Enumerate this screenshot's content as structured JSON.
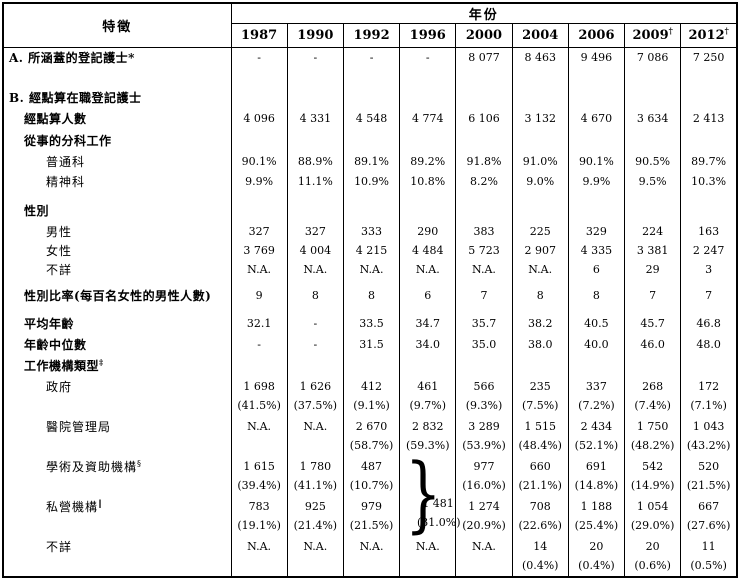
{
  "colors": {
    "border": "#000000",
    "text": "#000000",
    "background": "#ffffff"
  },
  "table": {
    "feature_header": "特徵",
    "year_header": "年份",
    "years": [
      {
        "text": "1987",
        "sup": ""
      },
      {
        "text": "1990",
        "sup": ""
      },
      {
        "text": "1992",
        "sup": ""
      },
      {
        "text": "1996",
        "sup": ""
      },
      {
        "text": "2000",
        "sup": ""
      },
      {
        "text": "2004",
        "sup": ""
      },
      {
        "text": "2006",
        "sup": ""
      },
      {
        "text": "2009",
        "sup": "†"
      },
      {
        "text": "2012",
        "sup": "†"
      }
    ],
    "rows": [
      {
        "kind": "single",
        "label": "A. 所涵蓋的登記護士*",
        "sup": "",
        "bold": true,
        "indent": 0,
        "h": 20,
        "values": [
          "-",
          "-",
          "-",
          "-",
          "8 077",
          "8 463",
          "9 496",
          "7 086",
          "7 250"
        ]
      },
      {
        "kind": "blank",
        "h": 20
      },
      {
        "kind": "single",
        "label": "B. 經點算在職登記護士",
        "sup": "",
        "bold": true,
        "indent": 0,
        "h": 20,
        "values": [
          "",
          "",
          "",
          "",
          "",
          "",
          "",
          "",
          ""
        ]
      },
      {
        "kind": "single",
        "label": "經點算人數",
        "sup": "",
        "bold": true,
        "indent": 1,
        "h": 22,
        "values": [
          "4 096",
          "4 331",
          "4 548",
          "4 774",
          "6 106",
          "3 132",
          "4 670",
          "3 634",
          "2 413"
        ]
      },
      {
        "kind": "single",
        "label": "從事的分科工作",
        "sup": "",
        "bold": true,
        "indent": 1,
        "h": 22,
        "values": [
          "",
          "",
          "",
          "",
          "",
          "",
          "",
          "",
          ""
        ]
      },
      {
        "kind": "single",
        "label": "普通科",
        "sup": "",
        "bold": false,
        "indent": 2,
        "h": 20,
        "values": [
          "90.1%",
          "88.9%",
          "89.1%",
          "89.2%",
          "91.8%",
          "91.0%",
          "90.1%",
          "90.5%",
          "89.7%"
        ]
      },
      {
        "kind": "single",
        "label": "精神科",
        "sup": "",
        "bold": false,
        "indent": 2,
        "h": 20,
        "values": [
          "9.9%",
          "11.1%",
          "10.9%",
          "10.8%",
          "8.2%",
          "9.0%",
          "9.9%",
          "9.5%",
          "10.3%"
        ]
      },
      {
        "kind": "blank",
        "h": 8
      },
      {
        "kind": "single",
        "label": "性別",
        "sup": "",
        "bold": true,
        "indent": 1,
        "h": 22,
        "values": [
          "",
          "",
          "",
          "",
          "",
          "",
          "",
          "",
          ""
        ]
      },
      {
        "kind": "single",
        "label": "男性",
        "sup": "",
        "bold": false,
        "indent": 2,
        "h": 19,
        "values": [
          "327",
          "327",
          "333",
          "290",
          "383",
          "225",
          "329",
          "224",
          "163"
        ]
      },
      {
        "kind": "single",
        "label": "女性",
        "sup": "",
        "bold": false,
        "indent": 2,
        "h": 19,
        "values": [
          "3 769",
          "4 004",
          "4 215",
          "4 484",
          "5 723",
          "2 907",
          "4 335",
          "3 381",
          "2 247"
        ]
      },
      {
        "kind": "single",
        "label": "不詳",
        "sup": "",
        "bold": false,
        "indent": 2,
        "h": 19,
        "values": [
          "N.A.",
          "N.A.",
          "N.A.",
          "N.A.",
          "N.A.",
          "N.A.",
          "6",
          "29",
          "3"
        ]
      },
      {
        "kind": "blank",
        "h": 6
      },
      {
        "kind": "single",
        "label": "性別比率(每百名女性的男性人數)",
        "sup": "",
        "bold": true,
        "indent": 1,
        "h": 22,
        "values": [
          "9",
          "8",
          "8",
          "6",
          "7",
          "8",
          "8",
          "7",
          "7"
        ]
      },
      {
        "kind": "blank",
        "h": 6
      },
      {
        "kind": "single",
        "label": "平均年齡",
        "sup": "",
        "bold": true,
        "indent": 1,
        "h": 21,
        "values": [
          "32.1",
          "-",
          "33.5",
          "34.7",
          "35.7",
          "38.2",
          "40.5",
          "45.7",
          "46.8"
        ]
      },
      {
        "kind": "single",
        "label": "年齡中位數",
        "sup": "",
        "bold": true,
        "indent": 1,
        "h": 21,
        "values": [
          "-",
          "-",
          "31.5",
          "34.0",
          "35.0",
          "38.0",
          "40.0",
          "46.0",
          "48.0"
        ]
      },
      {
        "kind": "single",
        "label": "工作機構類型",
        "sup": "‡",
        "bold": true,
        "indent": 1,
        "h": 22,
        "values": [
          "",
          "",
          "",
          "",
          "",
          "",
          "",
          "",
          ""
        ]
      },
      {
        "kind": "dual",
        "label": "政府",
        "sup": "",
        "bold": false,
        "indent": 2,
        "h": 40,
        "values": [
          [
            "1 698",
            "(41.5%)"
          ],
          [
            "1 626",
            "(37.5%)"
          ],
          [
            "412",
            "(9.1%)"
          ],
          [
            "461",
            "(9.7%)"
          ],
          [
            "566",
            "(9.3%)"
          ],
          [
            "235",
            "(7.5%)"
          ],
          [
            "337",
            "(7.2%)"
          ],
          [
            "268",
            "(7.4%)"
          ],
          [
            "172",
            "(7.1%)"
          ]
        ]
      },
      {
        "kind": "dual",
        "label": "醫院管理局",
        "sup": "",
        "bold": false,
        "indent": 2,
        "h": 40,
        "values": [
          [
            "N.A.",
            ""
          ],
          [
            "N.A.",
            ""
          ],
          [
            "2 670",
            "(58.7%)"
          ],
          [
            "2 832",
            "(59.3%)"
          ],
          [
            "3 289",
            "(53.9%)"
          ],
          [
            "1 515",
            "(48.4%)"
          ],
          [
            "2 434",
            "(52.1%)"
          ],
          [
            "1 750",
            "(48.2%)"
          ],
          [
            "1 043",
            "(43.2%)"
          ]
        ]
      },
      {
        "kind": "dual",
        "label": "學術及資助機構",
        "sup": "§",
        "bold": false,
        "indent": 2,
        "h": 40,
        "values": [
          [
            "1 615",
            "(39.4%)"
          ],
          [
            "1 780",
            "(41.1%)"
          ],
          [
            "487",
            "(10.7%)"
          ],
          [
            "",
            ""
          ],
          [
            "977",
            "(16.0%)"
          ],
          [
            "660",
            "(21.1%)"
          ],
          [
            "691",
            "(14.8%)"
          ],
          [
            "542",
            "(14.9%)"
          ],
          [
            "520",
            "(21.5%)"
          ]
        ]
      },
      {
        "kind": "dual",
        "label": "私營機構",
        "sup": "‖",
        "bold": false,
        "indent": 2,
        "h": 40,
        "values": [
          [
            "783",
            "(19.1%)"
          ],
          [
            "925",
            "(21.4%)"
          ],
          [
            "979",
            "(21.5%)"
          ],
          [
            "",
            ""
          ],
          [
            "1 274",
            "(20.9%)"
          ],
          [
            "708",
            "(22.6%)"
          ],
          [
            "1 188",
            "(25.4%)"
          ],
          [
            "1 054",
            "(29.0%)"
          ],
          [
            "667",
            "(27.6%)"
          ]
        ]
      },
      {
        "kind": "dual",
        "label": "不詳",
        "sup": "",
        "bold": false,
        "indent": 2,
        "h": 40,
        "values": [
          [
            "N.A.",
            ""
          ],
          [
            "N.A.",
            ""
          ],
          [
            "N.A.",
            ""
          ],
          [
            "N.A.",
            ""
          ],
          [
            "N.A.",
            ""
          ],
          [
            "14",
            "(0.4%)"
          ],
          [
            "20",
            "(0.4%)"
          ],
          [
            "20",
            "(0.6%)"
          ],
          [
            "11",
            "(0.5%)"
          ]
        ]
      }
    ],
    "merged_1996_cell": {
      "glyph": "}",
      "value": "1 481",
      "pct": "(31.0%)"
    }
  }
}
